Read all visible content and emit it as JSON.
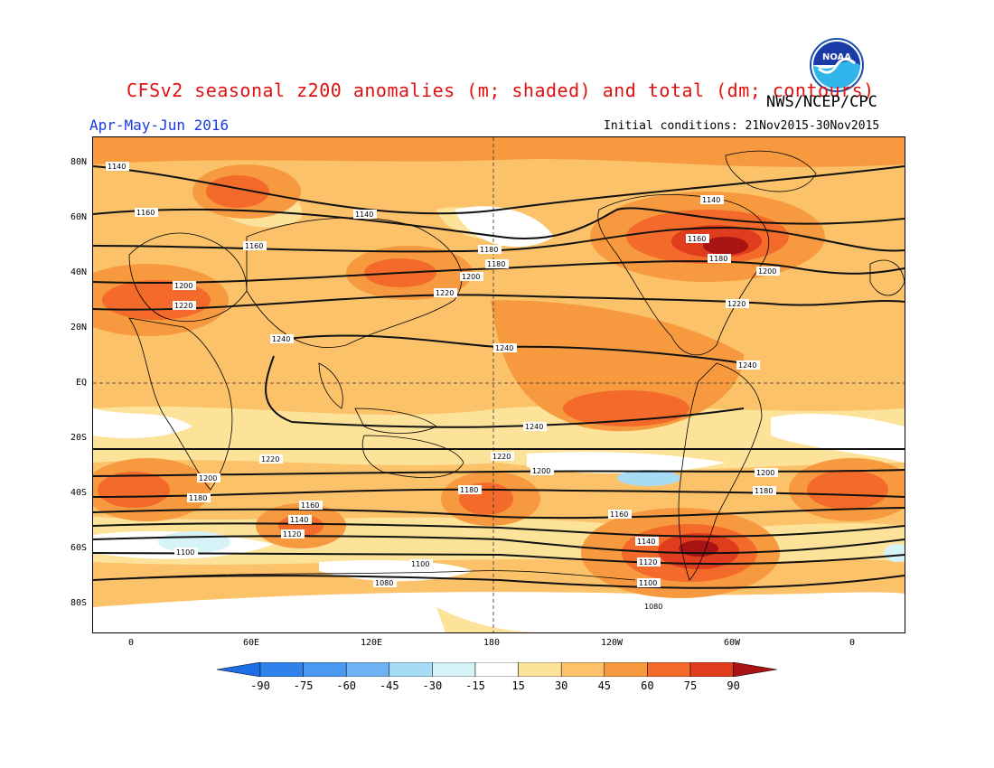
{
  "header": {
    "title": "CFSv2 seasonal z200 anomalies (m; shaded) and total (dm; contours)",
    "agency": "NWS/NCEP/CPC",
    "period": "Apr-May-Jun 2016",
    "initial_conditions": "Initial conditions: 21Nov2015-30Nov2015",
    "logo_text": "NOAA"
  },
  "map": {
    "lat_labels": [
      "80N",
      "60N",
      "40N",
      "20N",
      "EQ",
      "20S",
      "40S",
      "60S",
      "80S"
    ],
    "lon_labels": [
      "0",
      "60E",
      "120E",
      "180",
      "120W",
      "60W",
      "0"
    ],
    "contour_labels": [
      "1140",
      "1140",
      "1140",
      "1160",
      "1160",
      "1160",
      "1180",
      "1180",
      "1180",
      "1200",
      "1200",
      "1200",
      "1220",
      "1220",
      "1220",
      "1240",
      "1240",
      "1240",
      "1240",
      "1220",
      "1200",
      "1200",
      "1200",
      "1180",
      "1180",
      "1180",
      "1160",
      "1160",
      "1140",
      "1140",
      "1120",
      "1120",
      "1100",
      "1100",
      "1100",
      "1080",
      "1080",
      "1220"
    ]
  },
  "colorbar": {
    "labels": [
      "-90",
      "-75",
      "-60",
      "-45",
      "-30",
      "-15",
      "15",
      "30",
      "45",
      "60",
      "75",
      "90"
    ],
    "colors": [
      "#1e6ee6",
      "#2f82ec",
      "#4a98f0",
      "#6fb3f5",
      "#a6dcf5",
      "#d6f3f7",
      "#ffffff",
      "#fde39a",
      "#fbc26a",
      "#f7993e",
      "#f36a2a",
      "#e03c1e",
      "#a81414"
    ]
  }
}
